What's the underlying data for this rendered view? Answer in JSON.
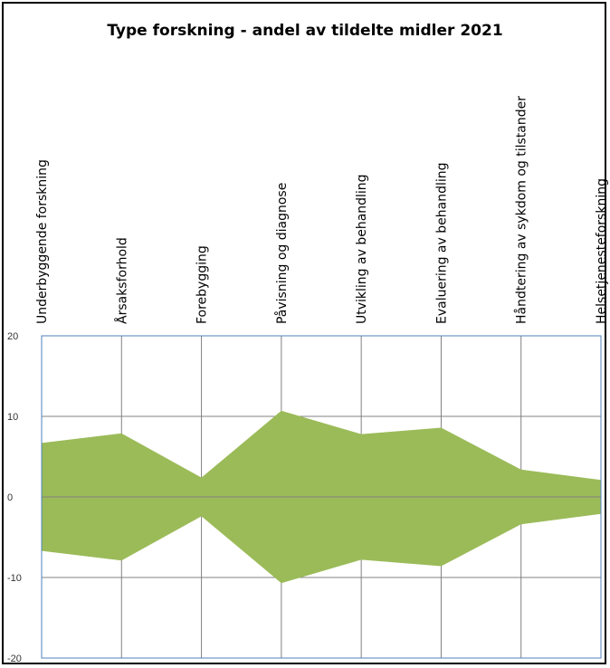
{
  "chart_data": {
    "type": "area",
    "title": "Type forskning - andel av tildelte midler 2021",
    "xlabel": "",
    "ylabel": "",
    "categories": [
      "Underbyggende forskning",
      "Årsaksforhold",
      "Forebygging",
      "Påvisning og diagnose",
      "Utvikling av behandling",
      "Evaluering av behandling",
      "Håndtering av sykdom og tilstander",
      "Helsetjenesteforskning"
    ],
    "values": [
      6.7,
      7.9,
      2.4,
      10.7,
      7.8,
      8.6,
      3.4,
      2.1
    ],
    "mirrored": true,
    "ylim": [
      -20,
      20
    ],
    "yticks": [
      20,
      10,
      0,
      -10,
      -20
    ],
    "grid": true,
    "fill_color": "#9bbb59",
    "grid_color": "#808080",
    "axis_color": "#4f81bd",
    "legend": "none"
  }
}
